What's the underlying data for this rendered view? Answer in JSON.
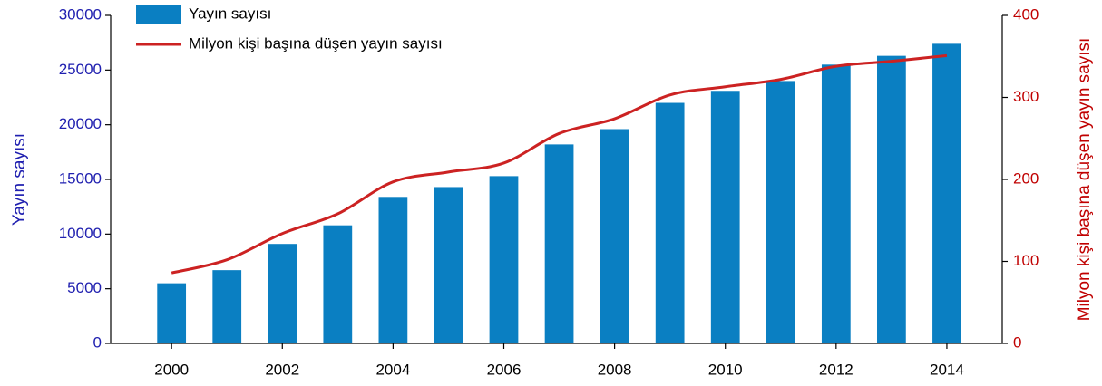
{
  "chart_data": {
    "type": "bar_line",
    "x": [
      2000,
      2001,
      2002,
      2003,
      2004,
      2005,
      2006,
      2007,
      2008,
      2009,
      2010,
      2011,
      2012,
      2013,
      2014
    ],
    "xlim": [
      1998.9,
      2015
    ],
    "xticks": [
      2000,
      2002,
      2004,
      2006,
      2008,
      2010,
      2012,
      2014
    ],
    "ylabel": "Yayın sayısı",
    "y2label": "Milyon kişi başına düşen yayın sayısı",
    "ylim": [
      0,
      30000
    ],
    "yticks": [
      0,
      5000,
      10000,
      15000,
      20000,
      25000,
      30000
    ],
    "y2lim": [
      0,
      400
    ],
    "y2ticks": [
      0,
      100,
      200,
      300,
      400
    ],
    "legend": "upper left",
    "series": [
      {
        "name": "Yayın sayısı",
        "type": "bar",
        "color": "#0a7fc2",
        "axis": "y",
        "values": [
          5500,
          6700,
          9100,
          10800,
          13400,
          14300,
          15300,
          18200,
          19600,
          22000,
          23100,
          24000,
          25500,
          26300,
          27400
        ]
      },
      {
        "name": "Milyon kişi başına düşen yayın sayısı",
        "type": "line",
        "color": "#cc2222",
        "axis": "y2",
        "values": [
          86,
          102,
          134,
          158,
          197,
          209,
          220,
          256,
          274,
          303,
          313,
          322,
          338,
          344,
          351
        ]
      }
    ]
  }
}
